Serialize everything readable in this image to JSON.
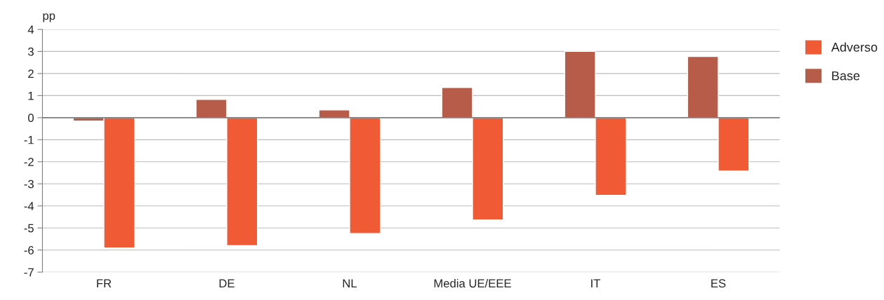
{
  "chart_data": {
    "type": "bar",
    "ylabel": "pp",
    "categories": [
      "FR",
      "DE",
      "NL",
      "Media UE/EEE",
      "IT",
      "ES"
    ],
    "series": [
      {
        "name": "Base",
        "color": "#b65c48",
        "values": [
          -0.15,
          0.83,
          0.35,
          1.37,
          3.0,
          2.77
        ]
      },
      {
        "name": "Adverso",
        "color": "#f05b35",
        "values": [
          -5.9,
          -5.8,
          -5.25,
          -4.63,
          -3.52,
          -2.42
        ]
      }
    ],
    "ylim": [
      -7,
      4
    ],
    "yticks": [
      -7,
      -6,
      -5,
      -4,
      -3,
      -2,
      -1,
      0,
      1,
      2,
      3,
      4
    ],
    "grid": "y",
    "legend": "top right",
    "ref_lines": [
      {
        "axis": "y",
        "value": 0,
        "color": "#808080"
      }
    ]
  }
}
